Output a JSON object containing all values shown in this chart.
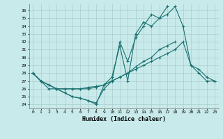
{
  "xlabel": "Humidex (Indice chaleur)",
  "background_color": "#c8eaea",
  "grid_color": "#aacccc",
  "line_color": "#1a7070",
  "xlim": [
    -0.5,
    23.5
  ],
  "ylim": [
    23.5,
    36.8
  ],
  "yticks": [
    24,
    25,
    26,
    27,
    28,
    29,
    30,
    31,
    32,
    33,
    34,
    35,
    36
  ],
  "xticks": [
    0,
    1,
    2,
    3,
    4,
    5,
    6,
    7,
    8,
    9,
    10,
    11,
    12,
    13,
    14,
    15,
    16,
    17,
    18,
    19,
    20,
    21,
    22,
    23
  ],
  "line1_y": [
    28,
    27,
    26.5,
    26,
    25.5,
    25,
    24.8,
    24.5,
    24,
    26.5,
    27.5,
    31.5,
    27,
    33,
    34.5,
    34,
    35,
    35.5,
    36.5,
    34,
    29,
    28,
    27,
    27
  ],
  "line2_y": [
    28,
    27,
    26,
    26,
    25.5,
    25,
    24.8,
    24.5,
    24.2,
    26,
    27,
    32,
    29.5,
    32.5,
    34,
    35.5,
    35,
    36.5,
    null,
    null,
    null,
    null,
    null,
    null
  ],
  "line3_y": [
    28,
    27,
    26.5,
    26,
    26,
    26,
    26,
    26,
    26.2,
    26.5,
    27,
    27.5,
    28,
    28.5,
    29,
    29.5,
    30,
    30.5,
    31,
    32,
    29,
    28.5,
    27.5,
    27
  ],
  "line4_y": [
    28,
    27,
    26.5,
    26,
    26,
    26,
    26,
    26.2,
    26.3,
    26.5,
    27,
    27.5,
    28,
    28.8,
    29.5,
    30,
    31,
    31.5,
    32,
    null,
    null,
    null,
    null,
    null
  ]
}
